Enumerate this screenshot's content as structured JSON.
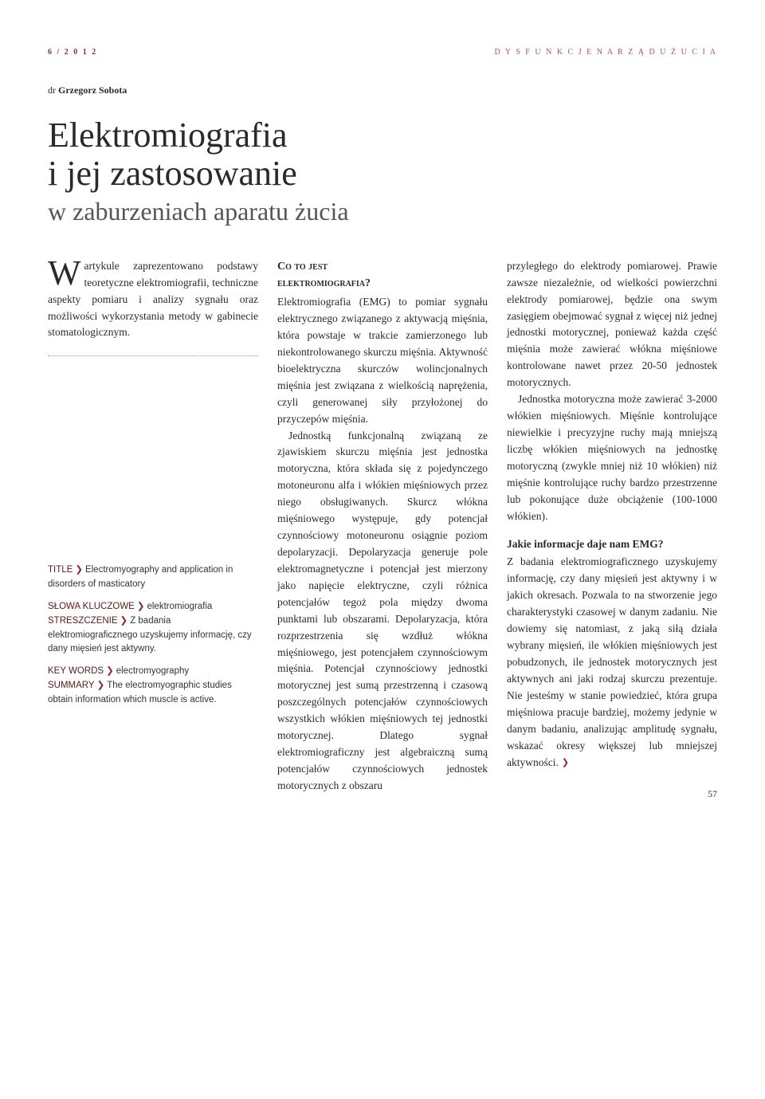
{
  "header": {
    "issue": "6 / 2 0 1 2",
    "section": "D Y S F U N K C J E  N A R Z Ą D U  Ż U C I A"
  },
  "author": {
    "prefix": "dr",
    "name": "Grzegorz Sobota"
  },
  "title": {
    "line1": "Elektromiografia",
    "line2": "i jej zastosowanie",
    "subtitle": "w zaburzeniach aparatu żucia"
  },
  "abstract": {
    "dropcap": "W",
    "text": "artykule zaprezentowano podstawy teoretyczne elektromiografii, techniczne aspekty pomiaru i analizy sygnału oraz możliwości wykorzystania metody w gabinecie stomatologicznym."
  },
  "meta": {
    "title_label": "TITLE",
    "title_text": "Electromyography and application in disorders of masticatory",
    "keywords_pl_label": "SŁOWA KLUCZOWE",
    "keywords_pl_text": "elektromiografia",
    "summary_pl_label": "STRESZCZENIE",
    "summary_pl_text": "Z badania elektromiograficznego uzyskujemy informację, czy dany mięsień jest aktywny.",
    "keywords_en_label": "KEY WORDS",
    "keywords_en_text": "electromyography",
    "summary_en_label": "SUMMARY",
    "summary_en_text": "The electromyographic studies obtain information which muscle is active."
  },
  "col2": {
    "head1": "Co to jest",
    "head2": "elektromiografia?",
    "p1": "Elektromiografia (EMG) to pomiar sygnału elektrycznego związanego z aktywacją mięśnia, która powstaje w trakcie zamierzonego lub niekontrolowanego skurczu mięśnia. Aktywność bioelektryczna skurczów wolincjonalnych mięśnia jest związana z wielkością naprężenia, czyli generowanej siły przyłożonej do przyczepów mięśnia.",
    "p2": "Jednostką funkcjonalną związaną ze zjawiskiem skurczu mięśnia jest jednostka motoryczna, która składa się z pojedynczego motoneuronu alfa i włókien mięśniowych przez niego obsługiwanych. Skurcz włókna mięśniowego występuje, gdy potencjał czynnościowy motoneuronu osiągnie poziom depolaryzacji. Depolaryzacja generuje pole elektromagnetyczne i potencjał jest mierzony jako napięcie elektryczne, czyli różnica potencjałów tegoż pola między dwoma punktami lub obszarami. Depolaryzacja, która rozprzestrzenia się wzdłuż włókna mięśniowego, jest potencjałem czynnościowym mięśnia. Potencjał czynnościowy jednostki motorycznej jest sumą przestrzenną i czasową poszczególnych potencjałów czynnościowych wszystkich włókien mięśniowych tej jednostki motorycznej. Dlatego sygnał elektromiograficzny jest algebraiczną sumą potencjałów czynnościowych jednostek motorycznych z obszaru"
  },
  "col3": {
    "p1": "przyległego do elektrody pomiarowej. Prawie zawsze niezależnie, od wielkości powierzchni elektrody pomiarowej, będzie ona swym zasięgiem obejmować sygnał z więcej niż jednej jednostki motorycznej, ponieważ każda część mięśnia może zawierać włókna mięśniowe kontrolowane nawet przez 20-50 jednostek motorycznych.",
    "p2": "Jednostka motoryczna może zawierać 3-2000 włókien mięśniowych. Mięśnie kontrolujące niewielkie i precyzyjne ruchy mają mniejszą liczbę włókien mięśniowych na jednostkę motoryczną (zwykle mniej niż 10 włókien) niż mięśnie kontrolujące ruchy bardzo przestrzenne lub pokonujące duże obciążenie (100-1000 włókien).",
    "subhead": "Jakie informacje daje nam EMG?",
    "p3": "Z badania elektromiograficznego uzyskujemy informację, czy dany mięsień jest aktywny i w jakich okresach. Pozwala to na stworzenie jego charakterystyki czasowej w danym zadaniu. Nie dowiemy się natomiast, z jaką siłą działa wybrany mięsień, ile włókien mięśniowych jest pobudzonych, ile jednostek motorycznych jest aktywnych ani jaki rodzaj skurczu prezentuje. Nie jesteśmy w stanie powiedzieć, która grupa mięśniowa pracuje bardziej, możemy jedynie w danym badaniu, analizując amplitudę sygnału, wskazać okresy większej lub mniejszej aktywności."
  },
  "pagenum": "57",
  "arrow": "❯"
}
